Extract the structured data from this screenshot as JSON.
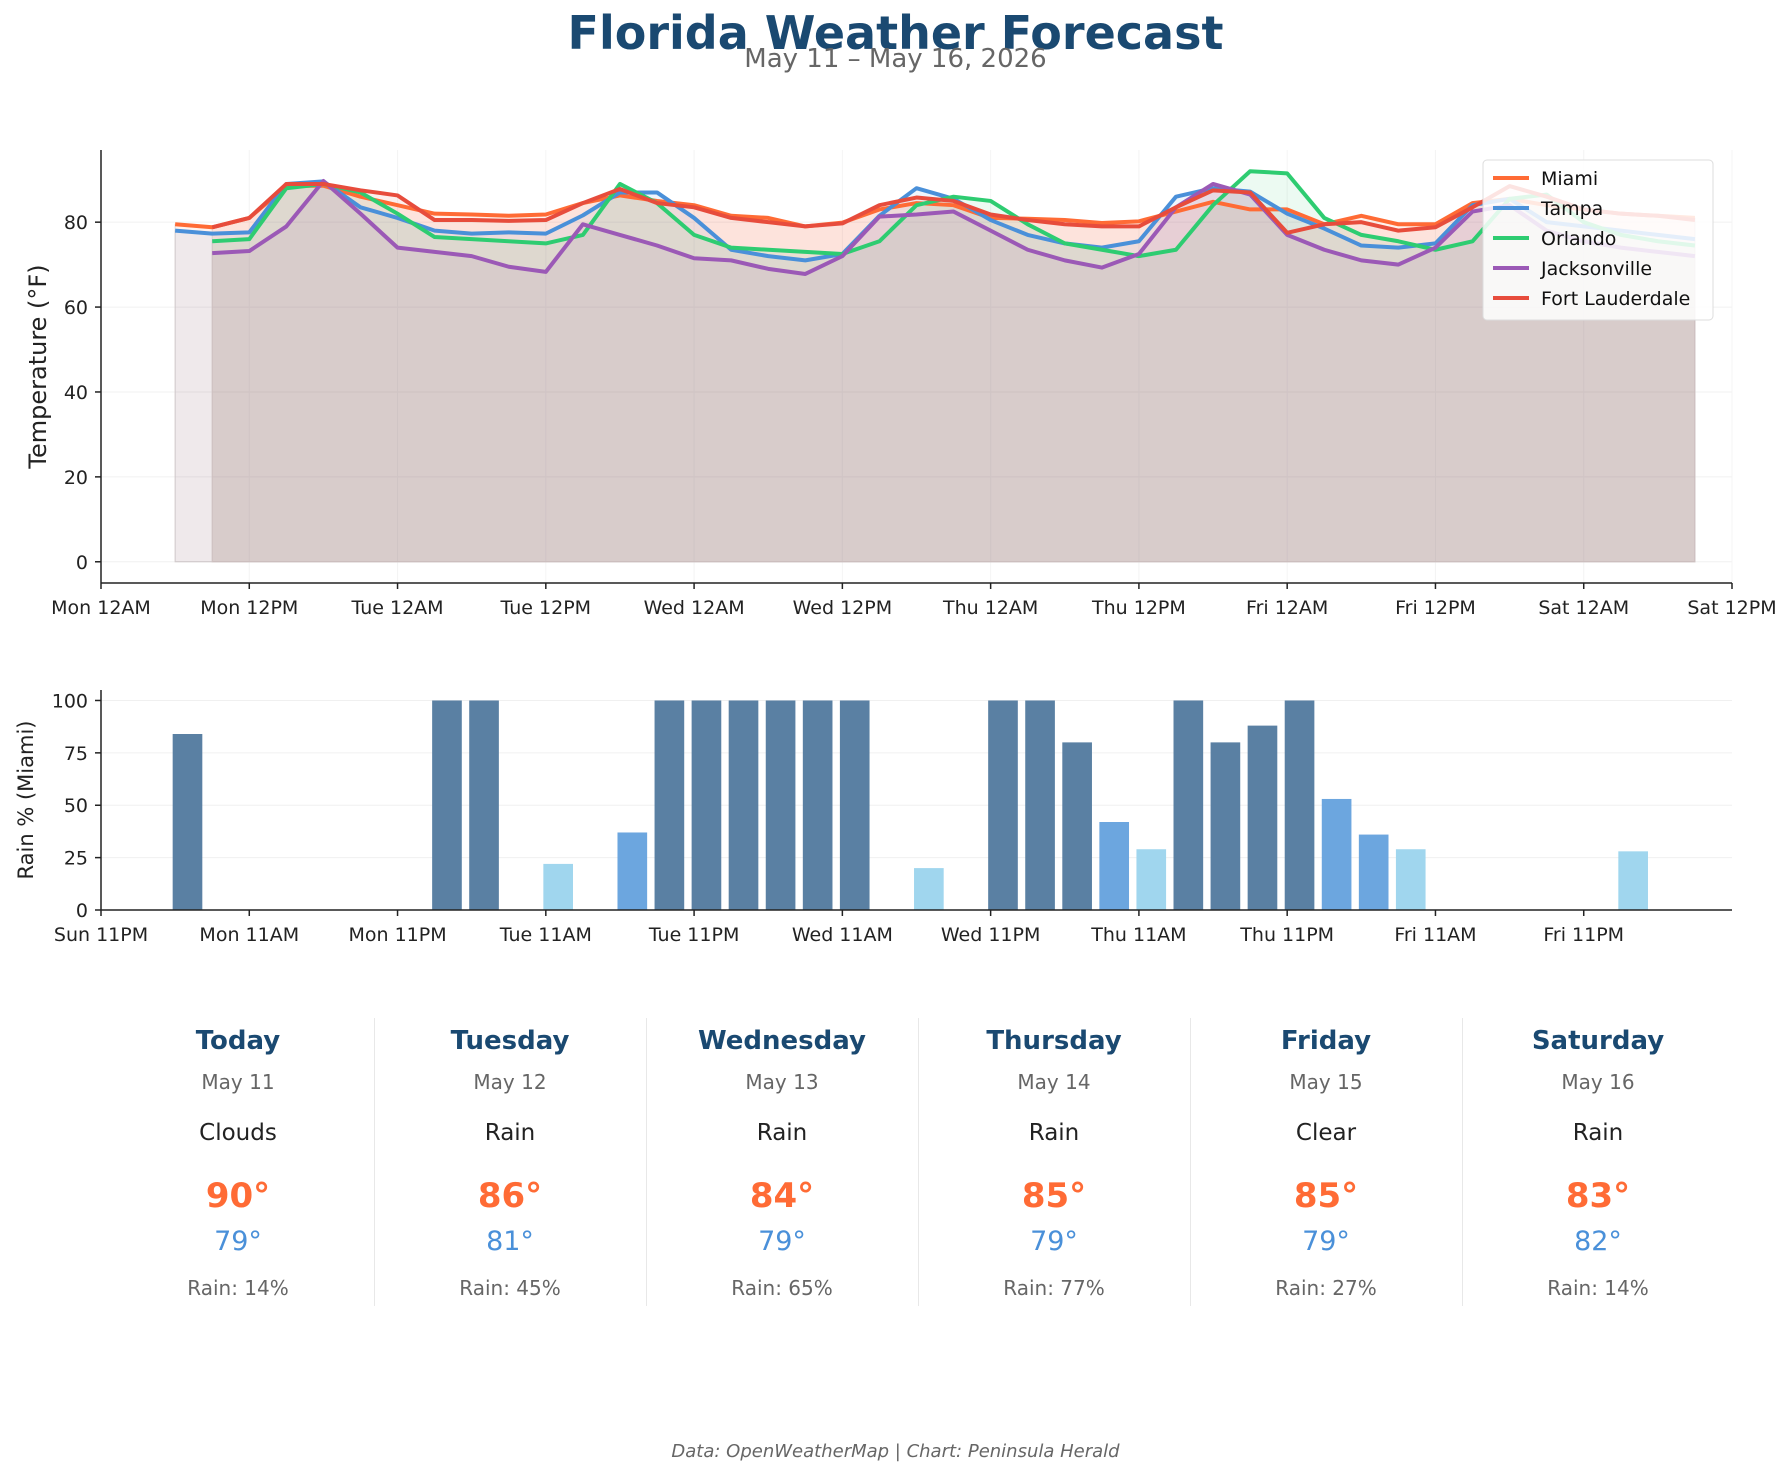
{
  "header": {
    "title": "Florida Weather Forecast",
    "subtitle": "May 11 – May 16, 2026"
  },
  "chart_data": [
    {
      "type": "line",
      "title": "",
      "ylabel": "Temperature (°F)",
      "xlabel": "",
      "x_unit": "hours from Mon 12AM",
      "xlim": [
        0,
        132
      ],
      "ylim": [
        -5,
        97
      ],
      "yticks": [
        0,
        20,
        40,
        60,
        80
      ],
      "xticks": [
        0,
        12,
        24,
        36,
        48,
        60,
        72,
        84,
        96,
        108,
        120,
        132
      ],
      "xtick_labels": [
        "Mon 12AM",
        "Mon 12PM",
        "Tue 12AM",
        "Tue 12PM",
        "Wed 12AM",
        "Wed 12PM",
        "Thu 12AM",
        "Thu 12PM",
        "Fri 12AM",
        "Fri 12PM",
        "Sat 12AM",
        "Sat 12PM"
      ],
      "area_fill": true,
      "grid": true,
      "legend_position": "top-right",
      "series": [
        {
          "name": "Miami",
          "color": "#ff6b35",
          "x": [
            6,
            9,
            12,
            15,
            18,
            21,
            24,
            27,
            30,
            33,
            36,
            39,
            42,
            45,
            48,
            51,
            54,
            57,
            60,
            63,
            66,
            69,
            72,
            75,
            78,
            81,
            84,
            87,
            90,
            93,
            96,
            99,
            102,
            105,
            108,
            111,
            114,
            117,
            120,
            123,
            126,
            129
          ],
          "y": [
            79.5,
            78.8,
            81.0,
            88.5,
            88.6,
            86.0,
            84.0,
            82.0,
            81.8,
            81.5,
            81.8,
            84.5,
            86.3,
            85.0,
            84.0,
            81.5,
            81.0,
            79.0,
            79.9,
            83.0,
            84.5,
            84.0,
            81.0,
            80.8,
            80.5,
            79.8,
            80.2,
            82.5,
            84.8,
            83.0,
            83.0,
            79.5,
            81.5,
            79.5,
            79.5,
            84.5,
            85.5,
            84.0,
            83.0,
            82.0,
            81.5,
            81.0
          ]
        },
        {
          "name": "Tampa",
          "color": "#4a90d9",
          "x": [
            6,
            9,
            12,
            15,
            18,
            21,
            24,
            27,
            30,
            33,
            36,
            39,
            42,
            45,
            48,
            51,
            54,
            57,
            60,
            63,
            66,
            69,
            72,
            75,
            78,
            81,
            84,
            87,
            90,
            93,
            96,
            99,
            102,
            105,
            108,
            111,
            114,
            117,
            120,
            123,
            126,
            129
          ],
          "y": [
            78.0,
            77.3,
            77.6,
            89.0,
            89.6,
            83.5,
            81.0,
            78.0,
            77.3,
            77.6,
            77.3,
            81.6,
            87.0,
            87.0,
            81.0,
            73.5,
            72.0,
            71.0,
            72.5,
            81.5,
            88.0,
            85.5,
            80.5,
            77.0,
            75.0,
            74.0,
            75.5,
            86.0,
            88.0,
            87.2,
            82.0,
            78.5,
            74.5,
            74.0,
            75.0,
            84.0,
            85.5,
            80.0,
            79.0,
            78.0,
            77.0,
            76.0
          ]
        },
        {
          "name": "Orlando",
          "color": "#2ecc71",
          "x": [
            9,
            12,
            15,
            18,
            21,
            24,
            27,
            30,
            33,
            36,
            39,
            42,
            45,
            48,
            51,
            54,
            57,
            60,
            63,
            66,
            69,
            72,
            75,
            78,
            81,
            84,
            87,
            90,
            93,
            96,
            99,
            102,
            105,
            108,
            111,
            114,
            117,
            120,
            123,
            126,
            129
          ],
          "y": [
            75.5,
            76.0,
            88.0,
            89.0,
            87.0,
            82.0,
            76.5,
            76.0,
            75.5,
            75.0,
            77.0,
            89.0,
            84.5,
            77.0,
            74.0,
            73.5,
            73.0,
            72.5,
            75.5,
            84.0,
            86.0,
            85.0,
            79.5,
            75.0,
            73.5,
            72.0,
            73.5,
            84.0,
            92.0,
            91.5,
            81.0,
            77.0,
            75.5,
            73.5,
            75.5,
            85.5,
            86.5,
            80.0,
            77.0,
            75.5,
            74.5
          ]
        },
        {
          "name": "Jacksonville",
          "color": "#9b59b6",
          "x": [
            9,
            12,
            15,
            18,
            21,
            24,
            27,
            30,
            33,
            36,
            39,
            42,
            45,
            48,
            51,
            54,
            57,
            60,
            63,
            66,
            69,
            72,
            75,
            78,
            81,
            84,
            87,
            90,
            93,
            96,
            99,
            102,
            105,
            108,
            111,
            114,
            117,
            120,
            123,
            126,
            129
          ],
          "y": [
            72.7,
            73.2,
            79.0,
            89.7,
            82.0,
            74.0,
            73.0,
            72.0,
            69.5,
            68.3,
            79.5,
            77.0,
            74.5,
            71.5,
            71.0,
            69.0,
            67.8,
            72.0,
            81.3,
            81.8,
            82.5,
            78.0,
            73.5,
            71.0,
            69.3,
            72.5,
            83.5,
            89.0,
            86.5,
            77.0,
            73.5,
            71.0,
            70.0,
            74.0,
            82.5,
            84.0,
            78.0,
            75.5,
            74.0,
            73.0,
            72.0
          ]
        },
        {
          "name": "Fort Lauderdale",
          "color": "#e74c3c",
          "x": [
            9,
            12,
            15,
            18,
            21,
            24,
            27,
            30,
            33,
            36,
            39,
            42,
            45,
            48,
            51,
            54,
            57,
            60,
            63,
            66,
            69,
            72,
            75,
            78,
            81,
            84,
            87,
            90,
            93,
            96,
            99,
            102,
            105,
            108,
            111,
            114,
            117,
            120,
            123,
            126,
            129
          ],
          "y": [
            78.8,
            81.0,
            89.0,
            89.0,
            87.5,
            86.3,
            80.5,
            80.5,
            80.3,
            80.5,
            84.5,
            87.8,
            84.5,
            83.5,
            81.0,
            80.0,
            79.0,
            79.7,
            84.0,
            85.8,
            85.0,
            81.8,
            80.5,
            79.5,
            79.0,
            79.0,
            83.5,
            87.5,
            87.0,
            77.5,
            79.5,
            80.0,
            78.0,
            78.8,
            83.5,
            88.5,
            86.0,
            83.0,
            82.0,
            81.5,
            80.5
          ]
        }
      ]
    },
    {
      "type": "bar",
      "title": "",
      "ylabel": "Rain % (Miami)",
      "xlabel": "",
      "x_unit": "hours from Sun 11PM",
      "xlim": [
        0,
        132
      ],
      "ylim": [
        0,
        105
      ],
      "yticks": [
        0,
        25,
        50,
        75,
        100
      ],
      "xticks": [
        0,
        12,
        24,
        36,
        48,
        60,
        72,
        84,
        96,
        108,
        120
      ],
      "xtick_labels": [
        "Sun 11PM",
        "Mon 11AM",
        "Mon 11PM",
        "Tue 11AM",
        "Tue 11PM",
        "Wed 11AM",
        "Wed 11PM",
        "Thu 11AM",
        "Thu 11PM",
        "Fri 11AM",
        "Fri 11PM"
      ],
      "grid": true,
      "color_scale": {
        "high": "#5a80a3",
        "medium": "#6ca6df",
        "low": "#a0d6ee"
      },
      "bars": [
        {
          "x": 7,
          "value": 84,
          "level": "high"
        },
        {
          "x": 28,
          "value": 100,
          "level": "high"
        },
        {
          "x": 31,
          "value": 100,
          "level": "high"
        },
        {
          "x": 37,
          "value": 22,
          "level": "low"
        },
        {
          "x": 43,
          "value": 37,
          "level": "medium"
        },
        {
          "x": 46,
          "value": 100,
          "level": "high"
        },
        {
          "x": 49,
          "value": 100,
          "level": "high"
        },
        {
          "x": 52,
          "value": 100,
          "level": "high"
        },
        {
          "x": 55,
          "value": 100,
          "level": "high"
        },
        {
          "x": 58,
          "value": 100,
          "level": "high"
        },
        {
          "x": 61,
          "value": 100,
          "level": "high"
        },
        {
          "x": 67,
          "value": 20,
          "level": "low"
        },
        {
          "x": 73,
          "value": 100,
          "level": "high"
        },
        {
          "x": 76,
          "value": 100,
          "level": "high"
        },
        {
          "x": 79,
          "value": 80,
          "level": "high"
        },
        {
          "x": 82,
          "value": 42,
          "level": "medium"
        },
        {
          "x": 85,
          "value": 29,
          "level": "low"
        },
        {
          "x": 88,
          "value": 100,
          "level": "high"
        },
        {
          "x": 91,
          "value": 80,
          "level": "high"
        },
        {
          "x": 94,
          "value": 88,
          "level": "high"
        },
        {
          "x": 97,
          "value": 100,
          "level": "high"
        },
        {
          "x": 100,
          "value": 53,
          "level": "medium"
        },
        {
          "x": 103,
          "value": 36,
          "level": "medium"
        },
        {
          "x": 106,
          "value": 29,
          "level": "low"
        },
        {
          "x": 124,
          "value": 28,
          "level": "low"
        }
      ]
    }
  ],
  "forecast": {
    "days": [
      {
        "name": "Today",
        "date": "May 11",
        "condition": "Clouds",
        "high": "90°",
        "low": "79°",
        "rain": "Rain: 14%"
      },
      {
        "name": "Tuesday",
        "date": "May 12",
        "condition": "Rain",
        "high": "86°",
        "low": "81°",
        "rain": "Rain: 45%"
      },
      {
        "name": "Wednesday",
        "date": "May 13",
        "condition": "Rain",
        "high": "84°",
        "low": "79°",
        "rain": "Rain: 65%"
      },
      {
        "name": "Thursday",
        "date": "May 14",
        "condition": "Rain",
        "high": "85°",
        "low": "79°",
        "rain": "Rain: 77%"
      },
      {
        "name": "Friday",
        "date": "May 15",
        "condition": "Clear",
        "high": "85°",
        "low": "79°",
        "rain": "Rain: 27%"
      },
      {
        "name": "Saturday",
        "date": "May 16",
        "condition": "Rain",
        "high": "83°",
        "low": "82°",
        "rain": "Rain: 14%"
      }
    ]
  },
  "footer": {
    "credit": "Data: OpenWeatherMap | Chart: Peninsula Herald"
  }
}
